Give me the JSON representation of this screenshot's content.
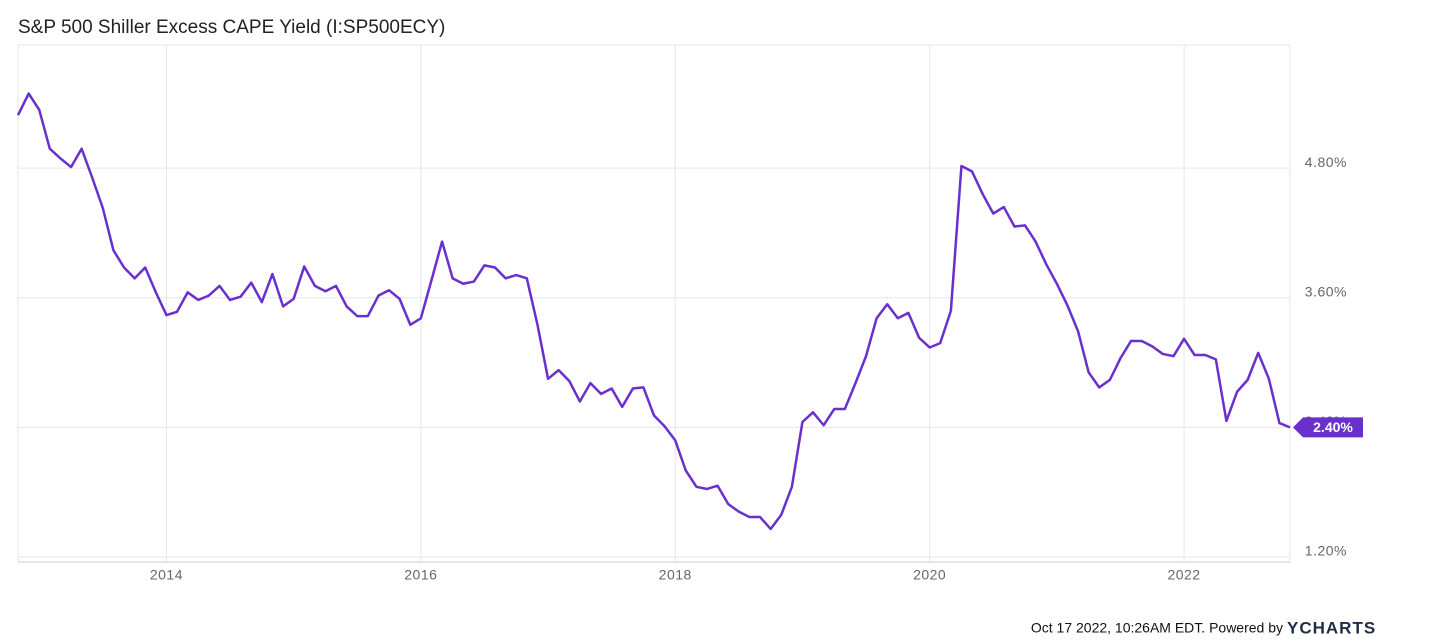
{
  "chart_data": {
    "type": "line",
    "title": "S&P 500 Shiller Excess CAPE Yield (I:SP500ECY)",
    "footer": "Oct 17 2022, 10:26AM EDT. Powered by",
    "logo": "YCHARTS",
    "xlim": [
      2012.833,
      2022.833
    ],
    "xticks": [
      2014,
      2016,
      2018,
      2020,
      2022
    ],
    "ylim": [
      1.154,
      5.94
    ],
    "yticks": [
      {
        "value": 1.2,
        "label": "1.20%"
      },
      {
        "value": 2.4,
        "label": "2.40%"
      },
      {
        "value": 3.6,
        "label": "3.60%"
      },
      {
        "value": 4.8,
        "label": "4.80%"
      }
    ],
    "grid": true,
    "x": [
      2012.833,
      2012.917,
      2013.0,
      2013.083,
      2013.167,
      2013.25,
      2013.333,
      2013.417,
      2013.5,
      2013.583,
      2013.667,
      2013.75,
      2013.833,
      2013.917,
      2014.0,
      2014.083,
      2014.167,
      2014.25,
      2014.333,
      2014.417,
      2014.5,
      2014.583,
      2014.667,
      2014.75,
      2014.833,
      2014.917,
      2015.0,
      2015.083,
      2015.167,
      2015.25,
      2015.333,
      2015.417,
      2015.5,
      2015.583,
      2015.667,
      2015.75,
      2015.833,
      2015.917,
      2016.0,
      2016.083,
      2016.167,
      2016.25,
      2016.333,
      2016.417,
      2016.5,
      2016.583,
      2016.667,
      2016.75,
      2016.833,
      2016.917,
      2017.0,
      2017.083,
      2017.167,
      2017.25,
      2017.333,
      2017.417,
      2017.5,
      2017.583,
      2017.667,
      2017.75,
      2017.833,
      2017.917,
      2018.0,
      2018.083,
      2018.167,
      2018.25,
      2018.333,
      2018.417,
      2018.5,
      2018.583,
      2018.667,
      2018.75,
      2018.833,
      2018.917,
      2019.0,
      2019.083,
      2019.167,
      2019.25,
      2019.333,
      2019.417,
      2019.5,
      2019.583,
      2019.667,
      2019.75,
      2019.833,
      2019.917,
      2020.0,
      2020.083,
      2020.167,
      2020.25,
      2020.333,
      2020.417,
      2020.5,
      2020.583,
      2020.667,
      2020.75,
      2020.833,
      2020.917,
      2021.0,
      2021.083,
      2021.167,
      2021.25,
      2021.333,
      2021.417,
      2021.5,
      2021.583,
      2021.667,
      2021.75,
      2021.833,
      2021.917,
      2022.0,
      2022.083,
      2022.167,
      2022.25,
      2022.333,
      2022.417,
      2022.5,
      2022.583,
      2022.667,
      2022.75,
      2022.833
    ],
    "series": [
      {
        "name": "S&P 500 Shiller Excess CAPE Yield",
        "color": "#6a2fcf",
        "values": [
          5.29,
          5.49,
          5.34,
          4.98,
          4.89,
          4.81,
          4.98,
          4.71,
          4.43,
          4.04,
          3.88,
          3.78,
          3.88,
          3.65,
          3.44,
          3.47,
          3.65,
          3.58,
          3.62,
          3.71,
          3.58,
          3.61,
          3.74,
          3.56,
          3.82,
          3.52,
          3.59,
          3.89,
          3.71,
          3.66,
          3.71,
          3.52,
          3.43,
          3.43,
          3.62,
          3.67,
          3.59,
          3.35,
          3.41,
          3.76,
          4.12,
          3.78,
          3.73,
          3.75,
          3.9,
          3.88,
          3.78,
          3.81,
          3.78,
          3.35,
          2.85,
          2.93,
          2.83,
          2.64,
          2.81,
          2.71,
          2.76,
          2.59,
          2.76,
          2.77,
          2.51,
          2.41,
          2.28,
          2.0,
          1.85,
          1.83,
          1.86,
          1.69,
          1.62,
          1.57,
          1.57,
          1.46,
          1.59,
          1.85,
          2.45,
          2.54,
          2.42,
          2.57,
          2.57,
          2.81,
          3.06,
          3.41,
          3.54,
          3.41,
          3.46,
          3.23,
          3.14,
          3.18,
          3.48,
          4.82,
          4.77,
          4.56,
          4.38,
          4.44,
          4.26,
          4.27,
          4.12,
          3.91,
          3.73,
          3.53,
          3.29,
          2.91,
          2.77,
          2.84,
          3.04,
          3.2,
          3.2,
          3.15,
          3.08,
          3.06,
          3.22,
          3.07,
          3.07,
          3.03,
          2.46,
          2.73,
          2.84,
          3.09,
          2.85,
          2.44,
          2.4
        ],
        "last_label": "2.40%"
      }
    ]
  }
}
